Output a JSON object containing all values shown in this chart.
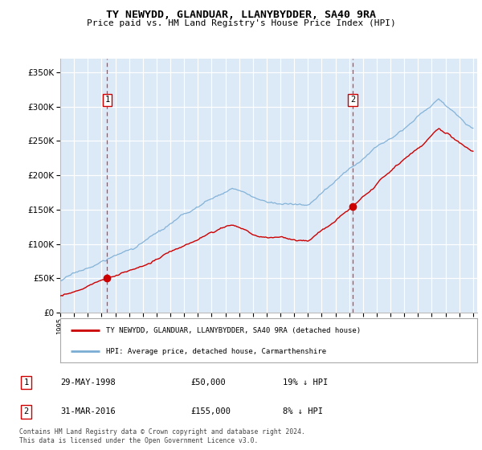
{
  "title": "TY NEWYDD, GLANDUAR, LLANYBYDDER, SA40 9RA",
  "subtitle": "Price paid vs. HM Land Registry's House Price Index (HPI)",
  "ylabel_vals": [
    0,
    50000,
    100000,
    150000,
    200000,
    250000,
    300000,
    350000
  ],
  "xlim": [
    1995.0,
    2025.3
  ],
  "ylim": [
    0,
    370000
  ],
  "background_color": "#ffffff",
  "plot_bg_color": "#dce9f7",
  "grid_color": "#ffffff",
  "transaction1": {
    "year": 1998.41,
    "price": 50000,
    "label": "1",
    "date": "29-MAY-1998",
    "pct": "19% ↓ HPI"
  },
  "transaction2": {
    "year": 2016.25,
    "price": 155000,
    "label": "2",
    "date": "31-MAR-2016",
    "pct": "8% ↓ HPI"
  },
  "legend_property": "TY NEWYDD, GLANDUAR, LLANYBYDDER, SA40 9RA (detached house)",
  "legend_hpi": "HPI: Average price, detached house, Carmarthenshire",
  "footer": "Contains HM Land Registry data © Crown copyright and database right 2024.\nThis data is licensed under the Open Government Licence v3.0.",
  "red_color": "#cc0000",
  "blue_color": "#7aadd4",
  "marker_box_color": "#cc0000",
  "dashed_color": "#ee3333"
}
